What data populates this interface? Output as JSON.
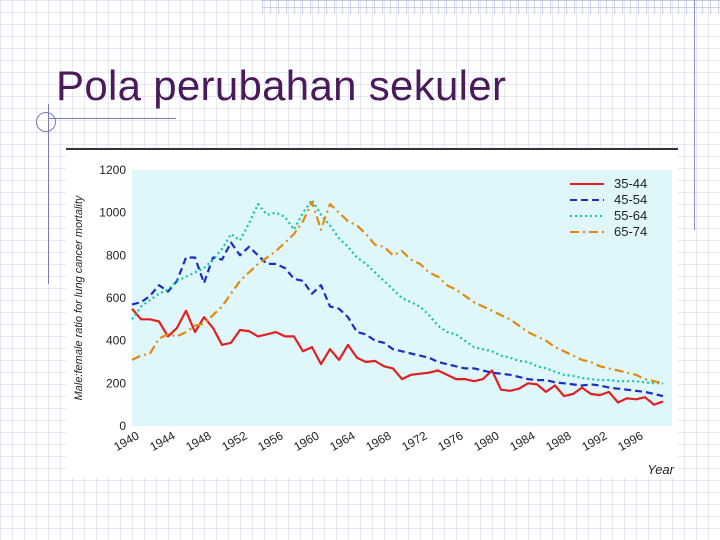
{
  "slide": {
    "title": "Pola perubahan sekuler"
  },
  "chart_data": {
    "type": "line",
    "ylabel": "Male:female ratio for lung cancer mortality",
    "xlabel": "Year",
    "ylim": [
      0,
      1200
    ],
    "xlim": [
      1940,
      2000
    ],
    "yticks": [
      "0",
      "200",
      "400",
      "600",
      "800",
      "1000",
      "1200"
    ],
    "xticks": [
      "1940",
      "1944",
      "1948",
      "1952",
      "1956",
      "1960",
      "1964",
      "1968",
      "1972",
      "1976",
      "1980",
      "1984",
      "1988",
      "1992",
      "1996"
    ],
    "legend_position": "top-right",
    "grid": false,
    "background_color": "#dff6fb",
    "series": [
      {
        "name": "35-44",
        "color": "#e02020",
        "dash": "solid",
        "x": [
          1940,
          1941,
          1942,
          1943,
          1944,
          1945,
          1946,
          1947,
          1948,
          1949,
          1950,
          1951,
          1952,
          1953,
          1954,
          1955,
          1956,
          1957,
          1958,
          1959,
          1960,
          1961,
          1962,
          1963,
          1964,
          1965,
          1966,
          1967,
          1968,
          1969,
          1970,
          1971,
          1972,
          1973,
          1974,
          1975,
          1976,
          1977,
          1978,
          1979,
          1980,
          1981,
          1982,
          1983,
          1984,
          1985,
          1986,
          1987,
          1988,
          1989,
          1990,
          1991,
          1992,
          1993,
          1994,
          1995,
          1996,
          1997,
          1998,
          1999
        ],
        "values": [
          550,
          500,
          500,
          490,
          420,
          460,
          540,
          440,
          510,
          460,
          380,
          390,
          450,
          445,
          420,
          430,
          440,
          420,
          420,
          350,
          370,
          290,
          360,
          310,
          380,
          320,
          300,
          305,
          280,
          270,
          220,
          240,
          245,
          250,
          260,
          240,
          220,
          220,
          210,
          220,
          260,
          170,
          165,
          175,
          200,
          195,
          160,
          190,
          140,
          150,
          180,
          150,
          145,
          160,
          110,
          130,
          125,
          135,
          100,
          115
        ]
      },
      {
        "name": "45-54",
        "color": "#1a2fbf",
        "dash": "dashed",
        "x": [
          1940,
          1941,
          1942,
          1943,
          1944,
          1945,
          1946,
          1947,
          1948,
          1949,
          1950,
          1951,
          1952,
          1953,
          1954,
          1955,
          1956,
          1957,
          1958,
          1959,
          1960,
          1961,
          1962,
          1963,
          1964,
          1965,
          1966,
          1967,
          1968,
          1969,
          1970,
          1971,
          1972,
          1973,
          1974,
          1975,
          1976,
          1977,
          1978,
          1979,
          1980,
          1981,
          1982,
          1983,
          1984,
          1985,
          1986,
          1987,
          1988,
          1989,
          1990,
          1991,
          1992,
          1993,
          1994,
          1995,
          1996,
          1997,
          1998,
          1999
        ],
        "values": [
          570,
          580,
          610,
          660,
          630,
          680,
          790,
          790,
          670,
          790,
          780,
          860,
          800,
          840,
          800,
          760,
          760,
          740,
          690,
          680,
          620,
          660,
          560,
          550,
          510,
          440,
          430,
          400,
          390,
          360,
          350,
          340,
          330,
          320,
          300,
          290,
          280,
          270,
          270,
          260,
          250,
          245,
          240,
          230,
          220,
          215,
          215,
          205,
          200,
          195,
          190,
          195,
          190,
          180,
          175,
          170,
          165,
          160,
          150,
          140
        ]
      },
      {
        "name": "55-64",
        "color": "#10c8a0",
        "dash": "dotted",
        "x": [
          1940,
          1941,
          1942,
          1943,
          1944,
          1945,
          1946,
          1947,
          1948,
          1949,
          1950,
          1951,
          1952,
          1953,
          1954,
          1955,
          1956,
          1957,
          1958,
          1959,
          1960,
          1961,
          1962,
          1963,
          1964,
          1965,
          1966,
          1967,
          1968,
          1969,
          1970,
          1971,
          1972,
          1973,
          1974,
          1975,
          1976,
          1977,
          1978,
          1979,
          1980,
          1981,
          1982,
          1983,
          1984,
          1985,
          1986,
          1987,
          1988,
          1989,
          1990,
          1991,
          1992,
          1993,
          1994,
          1995,
          1996,
          1997,
          1998,
          1999
        ],
        "values": [
          500,
          560,
          590,
          620,
          640,
          680,
          700,
          720,
          740,
          780,
          830,
          900,
          870,
          950,
          1040,
          990,
          1000,
          980,
          920,
          1000,
          1060,
          990,
          940,
          880,
          840,
          790,
          760,
          720,
          680,
          640,
          600,
          580,
          560,
          520,
          470,
          440,
          430,
          400,
          370,
          360,
          350,
          330,
          320,
          305,
          300,
          280,
          270,
          255,
          240,
          235,
          225,
          220,
          215,
          215,
          210,
          210,
          210,
          205,
          200,
          200
        ]
      },
      {
        "name": "65-74",
        "color": "#e08a10",
        "dash": "dashdot",
        "x": [
          1940,
          1941,
          1942,
          1943,
          1944,
          1945,
          1946,
          1947,
          1948,
          1949,
          1950,
          1951,
          1952,
          1953,
          1954,
          1955,
          1956,
          1957,
          1958,
          1959,
          1960,
          1961,
          1962,
          1963,
          1964,
          1965,
          1966,
          1967,
          1968,
          1969,
          1970,
          1971,
          1972,
          1973,
          1974,
          1975,
          1976,
          1977,
          1978,
          1979,
          1980,
          1981,
          1982,
          1983,
          1984,
          1985,
          1986,
          1987,
          1988,
          1989,
          1990,
          1991,
          1992,
          1993,
          1994,
          1995,
          1996,
          1997,
          1998,
          1999
        ],
        "values": [
          310,
          330,
          340,
          410,
          430,
          420,
          440,
          470,
          480,
          520,
          560,
          620,
          680,
          720,
          760,
          790,
          820,
          860,
          900,
          960,
          1050,
          920,
          1040,
          1000,
          960,
          940,
          900,
          850,
          840,
          800,
          820,
          780,
          760,
          720,
          700,
          660,
          640,
          610,
          580,
          560,
          540,
          520,
          500,
          470,
          440,
          420,
          400,
          370,
          350,
          330,
          310,
          300,
          280,
          270,
          260,
          250,
          240,
          220,
          210,
          200
        ]
      }
    ]
  }
}
